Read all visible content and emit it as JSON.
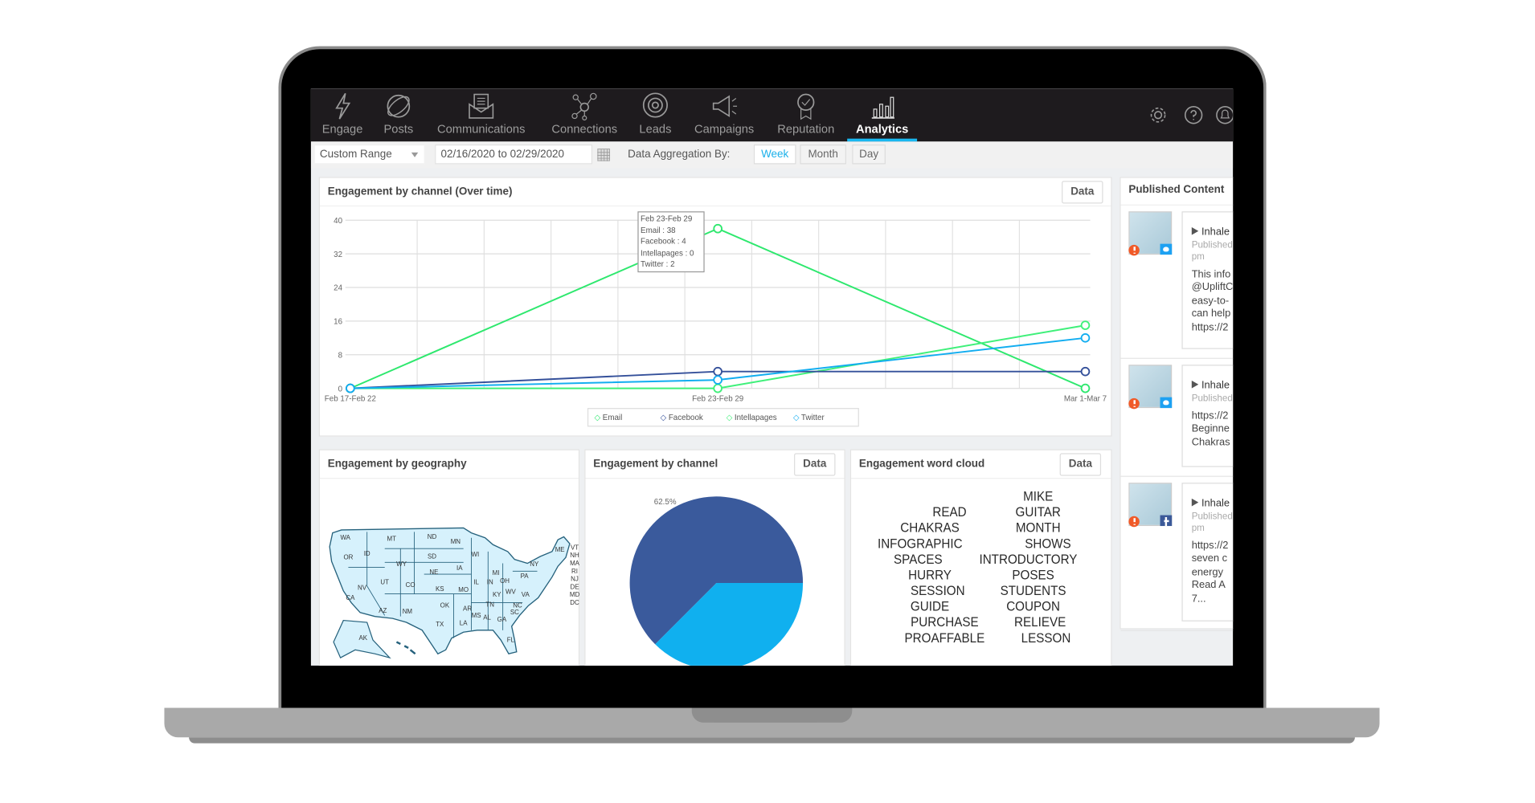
{
  "nav": {
    "items": [
      {
        "label": "Engage",
        "icon": "lightning-icon"
      },
      {
        "label": "Posts",
        "icon": "globe-icon"
      },
      {
        "label": "Communications",
        "icon": "envelope-icon"
      },
      {
        "label": "Connections",
        "icon": "network-icon"
      },
      {
        "label": "Leads",
        "icon": "target-icon"
      },
      {
        "label": "Campaigns",
        "icon": "megaphone-icon"
      },
      {
        "label": "Reputation",
        "icon": "badge-icon"
      },
      {
        "label": "Analytics",
        "icon": "bar-chart-icon",
        "active": true
      }
    ],
    "right_icons": [
      "gear-icon",
      "help-icon",
      "bell-icon"
    ],
    "accent": "#1bb8f0"
  },
  "toolbar": {
    "range_select": "Custom Range",
    "date_range": "02/16/2020 to 02/29/2020",
    "aggregation_label": "Data Aggregation By:",
    "aggregation_options": [
      "Week",
      "Month",
      "Day"
    ],
    "aggregation_selected": "Week"
  },
  "over_time_card": {
    "title": "Engagement by channel (Over time)",
    "data_button": "Data",
    "tooltip": {
      "title": "Feb 23-Feb 29",
      "lines": [
        "Email : 38",
        "Facebook : 4",
        "Intellapages : 0",
        "Twitter : 2"
      ]
    }
  },
  "geo_card": {
    "title": "Engagement by geography",
    "states": [
      "WA",
      "MT",
      "ND",
      "MN",
      "OR",
      "ID",
      "SD",
      "WI",
      "MI",
      "WY",
      "NE",
      "IA",
      "NY",
      "ME",
      "VT",
      "NH",
      "MA",
      "NV",
      "UT",
      "CO",
      "KS",
      "MO",
      "IL",
      "IN",
      "OH",
      "PA",
      "NJ",
      "DE",
      "RI",
      "MD",
      "DC",
      "KY",
      "WV",
      "VA",
      "CA",
      "AZ",
      "NM",
      "OK",
      "AR",
      "TN",
      "NC",
      "MS",
      "AL",
      "GA",
      "SC",
      "TX",
      "LA",
      "FL",
      "AK"
    ],
    "fill": "#d6f1fc"
  },
  "channel_card": {
    "title": "Engagement by channel",
    "data_button": "Data"
  },
  "wordcloud_card": {
    "title": "Engagement word cloud",
    "data_button": "Data",
    "words": [
      "MIKE",
      "GUITAR",
      "READ",
      "MONTH",
      "CHAKRAS",
      "SHOWS",
      "INFOGRAPHIC",
      "INTRODUCTORY",
      "SPACES",
      "POSES",
      "HURRY",
      "STUDENTS",
      "SESSION",
      "COUPON",
      "GUIDE",
      "RELIEVE",
      "PURCHASE",
      "LESSON",
      "PROAFFABLE"
    ]
  },
  "published": {
    "title": "Published Content",
    "items": [
      {
        "title": "Inhale",
        "meta": [
          "Published",
          "pm"
        ],
        "body": [
          "This info",
          "@UpliftC",
          "easy-to-",
          "can help",
          "https://2"
        ],
        "network": "twitter"
      },
      {
        "title": "Inhale",
        "meta": [
          "Published"
        ],
        "body": [
          "https://2",
          "Beginne",
          "Chakras"
        ],
        "network": "twitter"
      },
      {
        "title": "Inhale",
        "meta": [
          "Published",
          "pm"
        ],
        "body": [
          "https://2",
          "seven c",
          "energy",
          "Read A",
          "7..."
        ],
        "network": "facebook"
      }
    ]
  },
  "chart_data": [
    {
      "type": "line",
      "title": "Engagement by channel (Over time)",
      "categories": [
        "Feb 17-Feb 22",
        "Feb 23-Feb 29",
        "Mar 1-Mar 7"
      ],
      "ylim": [
        0,
        40
      ],
      "yticks": [
        0,
        8,
        16,
        24,
        32,
        40
      ],
      "grid": true,
      "legend": "bottom",
      "series": [
        {
          "name": "Email",
          "values": [
            0,
            38,
            0
          ],
          "color": "#2ee86e"
        },
        {
          "name": "Facebook",
          "values": [
            0,
            4,
            4
          ],
          "color": "#34509a"
        },
        {
          "name": "Intellapages",
          "values": [
            0,
            0,
            15
          ],
          "color": "#3ff07a"
        },
        {
          "name": "Twitter",
          "values": [
            0,
            2,
            12
          ],
          "color": "#12adf0"
        }
      ]
    },
    {
      "type": "pie",
      "title": "Engagement by channel",
      "slices": [
        {
          "label": "62.5%",
          "value": 62.5,
          "color": "#3a5a9c"
        },
        {
          "value": 37.5,
          "color": "#10b0ef"
        }
      ]
    }
  ]
}
